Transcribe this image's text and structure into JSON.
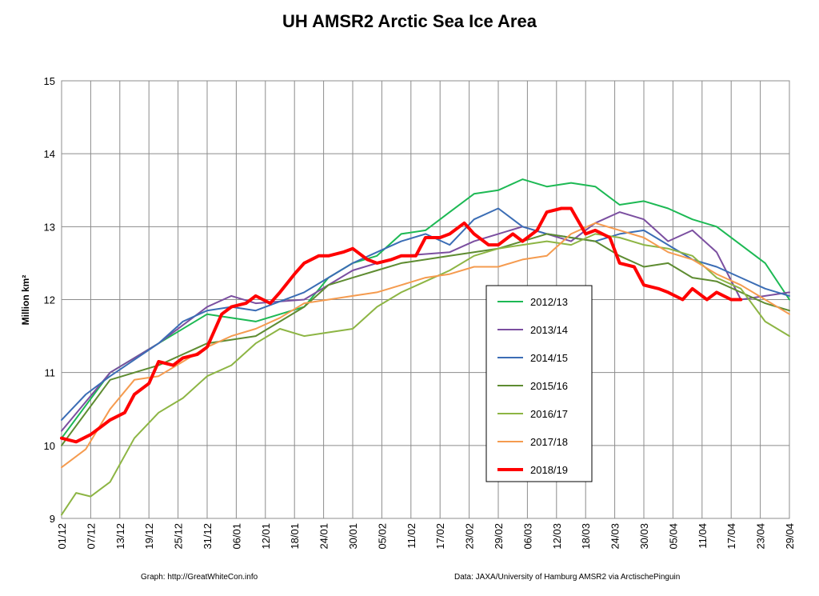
{
  "chart_data": {
    "type": "line",
    "title": "UH AMSR2 Arctic Sea Ice Area",
    "ylabel": "Million km²",
    "xlabel": "",
    "ylim": [
      9,
      15
    ],
    "yticks": [
      "9",
      "10",
      "11",
      "12",
      "13",
      "14",
      "15"
    ],
    "x_ticks": [
      "01/12",
      "07/12",
      "13/12",
      "19/12",
      "25/12",
      "31/12",
      "06/01",
      "12/01",
      "18/01",
      "24/01",
      "30/01",
      "05/02",
      "11/02",
      "17/02",
      "23/02",
      "29/02",
      "06/03",
      "12/03",
      "18/03",
      "24/03",
      "30/03",
      "05/04",
      "11/04",
      "17/04",
      "23/04",
      "29/04"
    ],
    "x_range_days": [
      0,
      150
    ],
    "grid": true,
    "legend_position": "center-right",
    "credit_left": "Graph: http://GreatWhiteCon.info",
    "credit_right": "Data: JAXA/University of Hamburg AMSR2  via  ArctischePinguin",
    "series": [
      {
        "name": "2012/13",
        "color": "#1db954",
        "width": 2,
        "x": [
          0,
          10,
          20,
          30,
          40,
          50,
          55,
          60,
          65,
          70,
          75,
          80,
          85,
          90,
          95,
          100,
          105,
          110,
          115,
          120,
          125,
          130,
          135,
          140,
          145,
          150
        ],
        "y": [
          10.1,
          11.0,
          11.4,
          11.8,
          11.7,
          11.9,
          12.3,
          12.5,
          12.6,
          12.9,
          12.95,
          13.2,
          13.45,
          13.5,
          13.65,
          13.55,
          13.6,
          13.55,
          13.3,
          13.35,
          13.25,
          13.1,
          13.0,
          12.75,
          12.5,
          12.0
        ]
      },
      {
        "name": "2013/14",
        "color": "#7b4fa0",
        "width": 2,
        "x": [
          0,
          10,
          20,
          30,
          35,
          40,
          50,
          60,
          70,
          80,
          85,
          90,
          95,
          100,
          105,
          110,
          115,
          120,
          125,
          130,
          135,
          140,
          145,
          150
        ],
        "y": [
          10.2,
          11.0,
          11.4,
          11.9,
          12.05,
          11.95,
          12.0,
          12.4,
          12.6,
          12.65,
          12.8,
          12.9,
          13.0,
          12.9,
          12.8,
          13.05,
          13.2,
          13.1,
          12.8,
          12.95,
          12.65,
          12.0,
          12.05,
          12.1
        ]
      },
      {
        "name": "2014/15",
        "color": "#3b6db5",
        "width": 2,
        "x": [
          0,
          5,
          10,
          20,
          25,
          30,
          35,
          40,
          50,
          55,
          60,
          65,
          70,
          75,
          80,
          85,
          90,
          95,
          100,
          105,
          110,
          115,
          120,
          125,
          130,
          135,
          140,
          145,
          150
        ],
        "y": [
          10.35,
          10.7,
          10.95,
          11.4,
          11.7,
          11.85,
          11.9,
          11.85,
          12.1,
          12.3,
          12.5,
          12.65,
          12.8,
          12.9,
          12.75,
          13.1,
          13.25,
          13.0,
          12.9,
          12.85,
          12.8,
          12.9,
          12.95,
          12.75,
          12.55,
          12.45,
          12.3,
          12.15,
          12.05
        ]
      },
      {
        "name": "2015/16",
        "color": "#5e8c31",
        "width": 2,
        "x": [
          0,
          10,
          20,
          30,
          40,
          50,
          55,
          60,
          65,
          70,
          75,
          80,
          85,
          90,
          95,
          100,
          105,
          110,
          115,
          120,
          125,
          130,
          135,
          140,
          145,
          150
        ],
        "y": [
          10.0,
          10.9,
          11.1,
          11.4,
          11.5,
          11.9,
          12.2,
          12.3,
          12.4,
          12.5,
          12.55,
          12.6,
          12.65,
          12.7,
          12.8,
          12.9,
          12.85,
          12.8,
          12.6,
          12.45,
          12.5,
          12.3,
          12.25,
          12.1,
          11.95,
          11.85
        ]
      },
      {
        "name": "2016/17",
        "color": "#8db544",
        "width": 2,
        "x": [
          0,
          3,
          6,
          10,
          15,
          20,
          25,
          30,
          35,
          40,
          45,
          50,
          55,
          60,
          65,
          70,
          75,
          80,
          85,
          90,
          95,
          100,
          105,
          110,
          115,
          120,
          125,
          130,
          135,
          140,
          145,
          150
        ],
        "y": [
          9.05,
          9.35,
          9.3,
          9.5,
          10.1,
          10.45,
          10.65,
          10.95,
          11.1,
          11.4,
          11.6,
          11.5,
          11.55,
          11.6,
          11.9,
          12.1,
          12.25,
          12.4,
          12.6,
          12.7,
          12.75,
          12.8,
          12.75,
          12.9,
          12.85,
          12.75,
          12.7,
          12.6,
          12.3,
          12.15,
          11.7,
          11.5
        ]
      },
      {
        "name": "2017/18",
        "color": "#f59b4f",
        "width": 2,
        "x": [
          0,
          5,
          10,
          15,
          20,
          25,
          30,
          35,
          40,
          45,
          50,
          55,
          60,
          65,
          70,
          75,
          80,
          85,
          90,
          95,
          100,
          105,
          110,
          115,
          120,
          125,
          130,
          135,
          140,
          145,
          150
        ],
        "y": [
          9.7,
          9.95,
          10.5,
          10.9,
          10.95,
          11.15,
          11.35,
          11.5,
          11.6,
          11.75,
          11.95,
          12.0,
          12.05,
          12.1,
          12.2,
          12.3,
          12.35,
          12.45,
          12.45,
          12.55,
          12.6,
          12.9,
          13.05,
          12.95,
          12.85,
          12.65,
          12.55,
          12.35,
          12.2,
          12.0,
          11.8
        ]
      },
      {
        "name": "2018/19",
        "color": "#ff0000",
        "width": 4,
        "x": [
          0,
          3,
          6,
          10,
          13,
          15,
          18,
          20,
          23,
          25,
          28,
          30,
          33,
          35,
          38,
          40,
          43,
          45,
          48,
          50,
          53,
          55,
          58,
          60,
          63,
          65,
          68,
          70,
          73,
          75,
          78,
          80,
          83,
          85,
          88,
          90,
          93,
          95,
          98,
          100,
          103,
          105,
          108,
          110,
          113,
          115,
          118,
          120,
          123,
          125,
          128,
          130,
          133,
          135,
          138,
          140
        ],
        "y": [
          10.1,
          10.05,
          10.15,
          10.35,
          10.45,
          10.7,
          10.85,
          11.15,
          11.1,
          11.2,
          11.25,
          11.35,
          11.8,
          11.9,
          11.95,
          12.05,
          11.95,
          12.1,
          12.35,
          12.5,
          12.6,
          12.6,
          12.65,
          12.7,
          12.55,
          12.5,
          12.55,
          12.6,
          12.6,
          12.85,
          12.85,
          12.9,
          13.05,
          12.9,
          12.75,
          12.75,
          12.9,
          12.8,
          12.95,
          13.2,
          13.25,
          13.25,
          12.9,
          12.95,
          12.85,
          12.5,
          12.45,
          12.2,
          12.15,
          12.1,
          12.0,
          12.15,
          12.0,
          12.1,
          12.0,
          12.0
        ]
      }
    ]
  }
}
